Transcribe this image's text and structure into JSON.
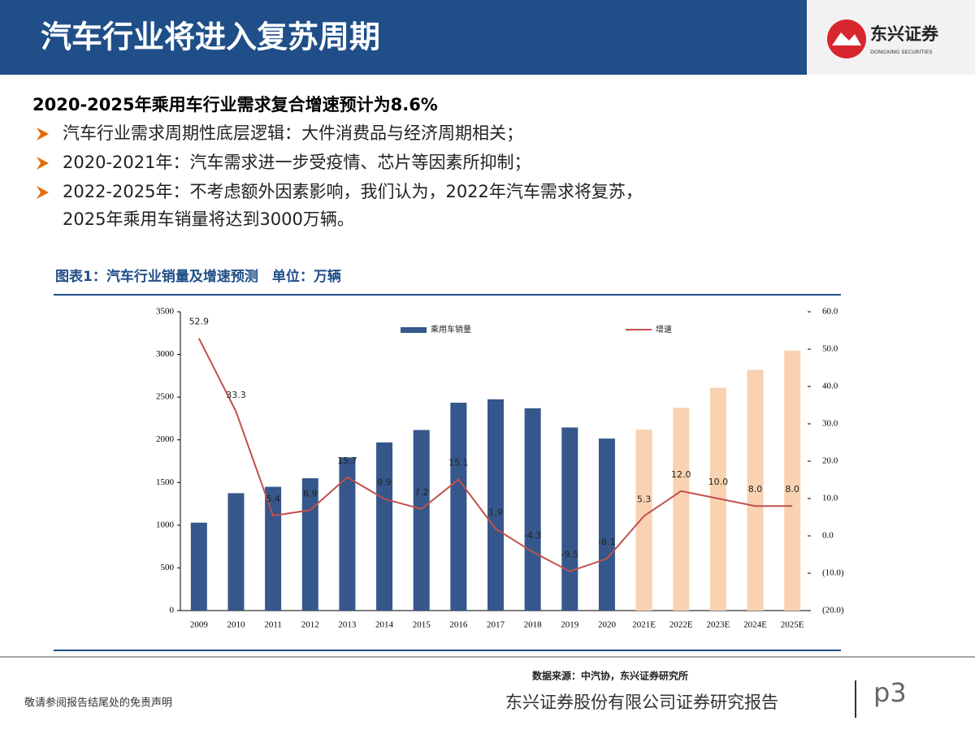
{
  "header": {
    "title": "汽车行业将进入复苏周期",
    "logo_name": "东兴证券",
    "logo_en": "DONGXING SECURITIES"
  },
  "headline": "2020-2025年乘用车行业需求复合增速预计为8.6%",
  "bullets": [
    [
      "汽车行业需求周期性底层逻辑：大件消费品与经济周期相关；"
    ],
    [
      "2020-2021年：汽车需求进一步受疫情、芯片等因素所抑制；"
    ],
    [
      "2022-2025年：不考虑额外因素影响，我们认为，2022年汽车需求将复苏，",
      "2025年乘用车销量将达到3000万辆。"
    ]
  ],
  "chart_data": {
    "type": "bar-line",
    "title": "图表1：汽车行业销量及增速预测　单位：万辆",
    "categories": [
      "2009",
      "2010",
      "2011",
      "2012",
      "2013",
      "2014",
      "2015",
      "2016",
      "2017",
      "2018",
      "2019",
      "2020",
      "2021E",
      "2022E",
      "2023E",
      "2024E",
      "2025E"
    ],
    "series": [
      {
        "name": "乘用车销量",
        "type": "bar",
        "color": "#35578b",
        "colors": [
          "#35578b",
          "#35578b",
          "#35578b",
          "#35578b",
          "#35578b",
          "#35578b",
          "#35578b",
          "#35578b",
          "#35578b",
          "#35578b",
          "#35578b",
          "#35578b",
          "#f9d2b1",
          "#f9d2b1",
          "#f9d2b1",
          "#f9d2b1",
          "#f9d2b1"
        ],
        "values": [
          1030,
          1375,
          1450,
          1550,
          1795,
          1970,
          2115,
          2435,
          2475,
          2370,
          2145,
          2015,
          2120,
          2375,
          2610,
          2820,
          3045
        ]
      },
      {
        "name": "增速",
        "type": "line",
        "axis": "y2",
        "color": "#c0504d",
        "values": [
          52.9,
          33.3,
          5.4,
          6.9,
          15.7,
          9.9,
          7.2,
          15.1,
          1.9,
          -4.3,
          -9.5,
          -6.1,
          5.3,
          12.0,
          10.0,
          8.0,
          8.0
        ],
        "value_labels": [
          "52.9",
          "33.3",
          "5.4",
          "6.9",
          "15.7",
          "9.9",
          "7.2",
          "15.1",
          "1.9",
          "-4.3",
          "-9.5",
          "-6.1",
          "5.3",
          "12.0",
          "10.0",
          "8.0",
          "8.0"
        ]
      }
    ],
    "ylim": [
      0,
      3500
    ],
    "yticks": [
      0,
      500,
      1000,
      1500,
      2000,
      2500,
      3000,
      3500
    ],
    "y2lim": [
      -20,
      60
    ],
    "y2ticks": [
      {
        "value": -20,
        "label": "(20.0)"
      },
      {
        "value": -10,
        "label": "(10.0)"
      },
      {
        "value": 0,
        "label": "0.0"
      },
      {
        "value": 10,
        "label": "10.0"
      },
      {
        "value": 20,
        "label": "20.0"
      },
      {
        "value": 30,
        "label": "30.0"
      },
      {
        "value": 40,
        "label": "40.0"
      },
      {
        "value": 50,
        "label": "50.0"
      },
      {
        "value": 60,
        "label": "60.0"
      }
    ],
    "source": "数据来源：中汽协，东兴证券研究所"
  },
  "footer": {
    "disclaimer": "敬请参阅报告结尾处的免责声明",
    "company": "东兴证券股份有限公司证券研究报告",
    "page": "p3"
  }
}
